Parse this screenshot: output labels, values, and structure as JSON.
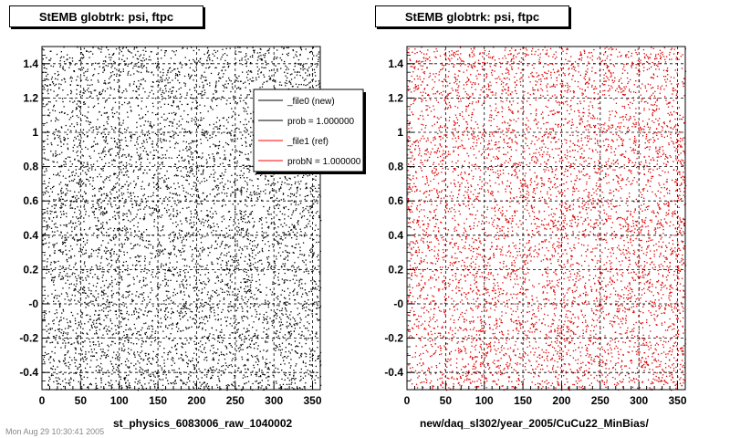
{
  "chart_data": [
    {
      "type": "scatter",
      "title": "StEMB globtrk: psi, ftpc",
      "xlabel": "st_physics_6083006_raw_1040002",
      "ylabel": "",
      "xlim": [
        0,
        360
      ],
      "ylim": [
        -0.5,
        1.5
      ],
      "xticks": [
        "0",
        "50",
        "100",
        "150",
        "200",
        "250",
        "300",
        "350"
      ],
      "yticks": [
        "-0.4",
        "-0.2",
        "-0",
        "0.2",
        "0.4",
        "0.6",
        "0.8",
        "1",
        "1.2",
        "1.4"
      ],
      "grid": true,
      "marker_color": "#000000",
      "legend": {
        "placement": "top-right",
        "entries": [
          {
            "label": "_file0 (new)",
            "color": "#000000"
          },
          {
            "label": "prob = 1.000000",
            "color": "#000000"
          },
          {
            "label": "_file1 (ref)",
            "color": "#ff0000"
          },
          {
            "label": "probN = 1.000000",
            "color": "#ff0000"
          }
        ]
      }
    },
    {
      "type": "scatter",
      "title": "StEMB globtrk: psi, ftpc",
      "xlabel": "new/daq_sl302/year_2005/CuCu22_MinBias/",
      "ylabel": "",
      "xlim": [
        0,
        360
      ],
      "ylim": [
        -0.5,
        1.5
      ],
      "xticks": [
        "0",
        "50",
        "100",
        "150",
        "200",
        "250",
        "300",
        "350"
      ],
      "yticks": [
        "-0.4",
        "-0.2",
        "-0",
        "0.2",
        "0.4",
        "0.6",
        "0.8",
        "1",
        "1.2",
        "1.4"
      ],
      "grid": true,
      "marker_color": "#dd0000"
    }
  ],
  "footer": "Mon Aug 29 10:30:41 2005"
}
